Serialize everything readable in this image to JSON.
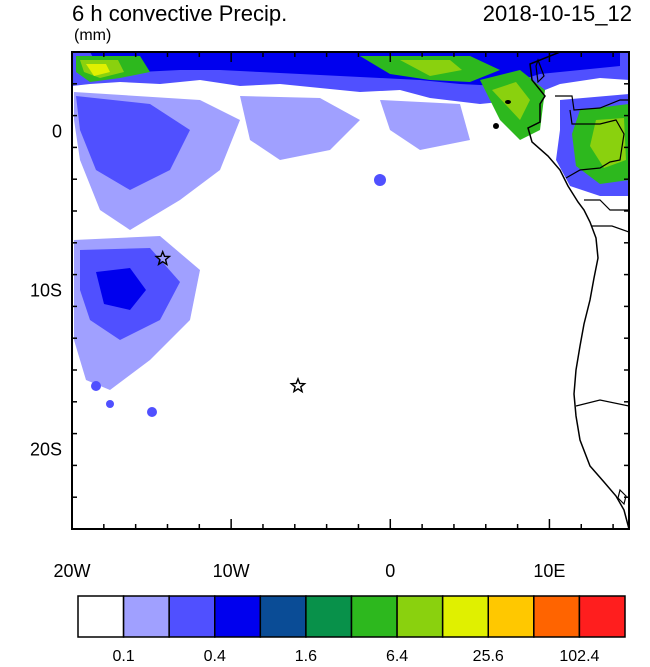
{
  "header": {
    "title": "6 h convective Precip.",
    "units": "(mm)",
    "valid_time": "2018-10-15_12"
  },
  "axes": {
    "lon_range": [
      -20,
      15
    ],
    "lat_range": [
      -25,
      5
    ],
    "x_ticks": [
      {
        "value": -20,
        "label": "20W"
      },
      {
        "value": -10,
        "label": "10W"
      },
      {
        "value": 0,
        "label": "0"
      },
      {
        "value": 10,
        "label": "10E"
      }
    ],
    "y_ticks": [
      {
        "value": 0,
        "label": "0"
      },
      {
        "value": -10,
        "label": "10S"
      },
      {
        "value": -20,
        "label": "20S"
      }
    ]
  },
  "colorbar": {
    "colors": [
      "#ffffff",
      "#a0a0ff",
      "#5050ff",
      "#0000ee",
      "#0a4c96",
      "#08914a",
      "#2db81e",
      "#8ad10e",
      "#e0f000",
      "#ffc800",
      "#ff6400",
      "#ff1e1e"
    ],
    "labels": [
      {
        "index": 1,
        "text": "0.1"
      },
      {
        "index": 3,
        "text": "0.4"
      },
      {
        "index": 5,
        "text": "1.6"
      },
      {
        "index": 7,
        "text": "6.4"
      },
      {
        "index": 9,
        "text": "25.6"
      },
      {
        "index": 11,
        "text": "102.4"
      }
    ]
  },
  "markers": [
    {
      "name": "star-marker-north",
      "lon": -14.3,
      "lat": -8.0
    },
    {
      "name": "star-marker-south",
      "lon": -5.8,
      "lat": -16.0
    }
  ]
}
